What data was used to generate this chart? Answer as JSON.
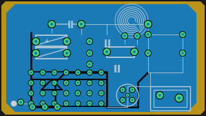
{
  "bg_outer": "#1a1a1a",
  "bg_board": "#1a7ab5",
  "border_color": "#b8941a",
  "trace_color": "#a0bfd0",
  "pad_fill": "#3dd47a",
  "pad_outline": "#000000",
  "pad_inner": "#1a7ab5",
  "component_outline": "#b8ccd8",
  "fig_width": 2.99,
  "fig_height": 1.68,
  "dpi": 100
}
